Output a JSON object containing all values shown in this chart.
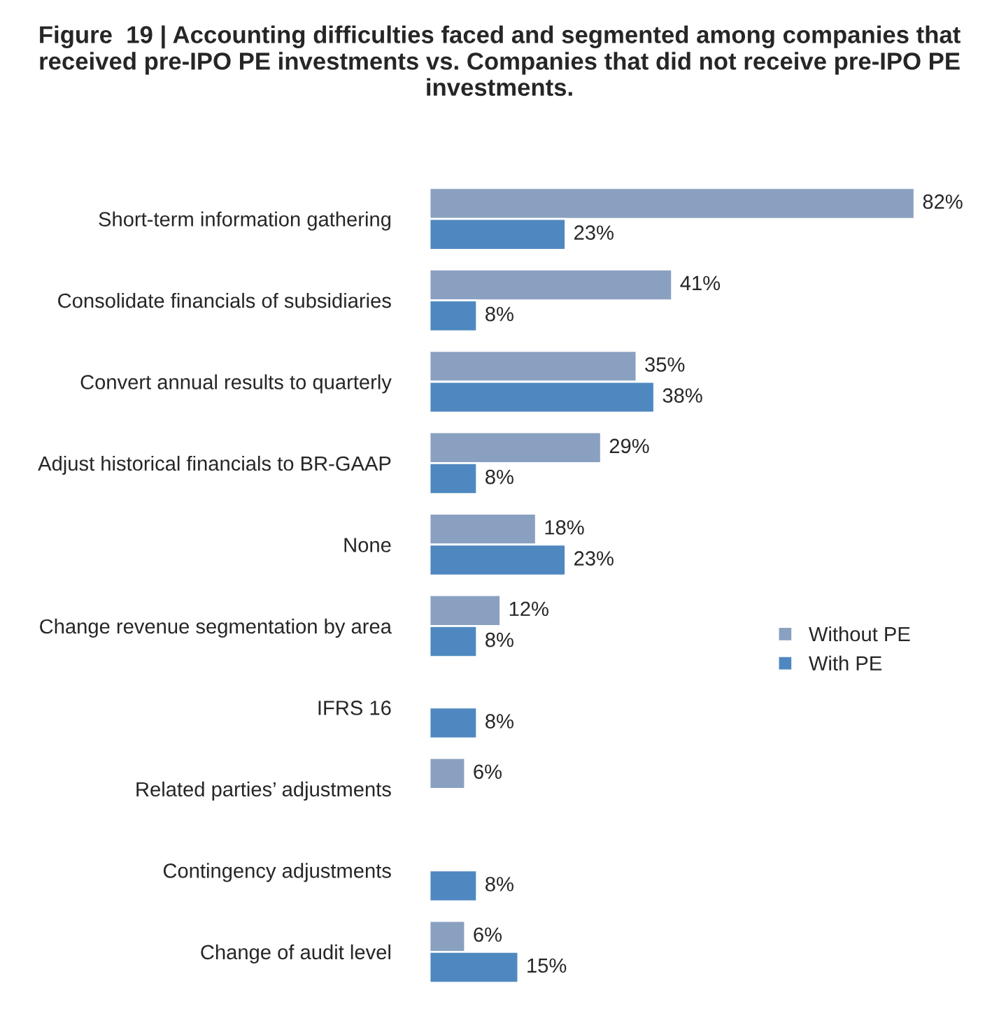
{
  "chart_data": {
    "type": "bar",
    "orientation": "horizontal",
    "title": "Figure  19 | Accounting difficulties faced and segmented among companies that received pre-IPO PE investments vs. Companies that did not receive pre-IPO PE investments.",
    "categories": [
      "Short-term information gathering",
      "Consolidate financials of subsidiaries",
      "Convert annual results to quarterly",
      "Adjust historical financials to BR-GAAP",
      "None",
      "Change revenue segmentation by area",
      "IFRS 16",
      "Related parties’ adjustments",
      "Contingency adjustments",
      "Change of audit level"
    ],
    "series": [
      {
        "name": "Without PE",
        "color": "#8aa0c0",
        "values": [
          82,
          41,
          35,
          29,
          18,
          12,
          null,
          6,
          null,
          6
        ],
        "value_labels": [
          "82%",
          "41%",
          "35%",
          "29%",
          "18%",
          "12%",
          null,
          "6%",
          null,
          "6%"
        ]
      },
      {
        "name": "With PE",
        "color": "#4f88c0",
        "values": [
          23,
          8,
          38,
          8,
          23,
          8,
          8,
          null,
          8,
          15
        ],
        "value_labels": [
          "23%",
          "8%",
          "38%",
          "8%",
          "23%",
          "8%",
          "8%",
          null,
          "8%",
          "15%"
        ]
      }
    ],
    "legend": "right",
    "grid": false,
    "tick_labels": "y"
  }
}
